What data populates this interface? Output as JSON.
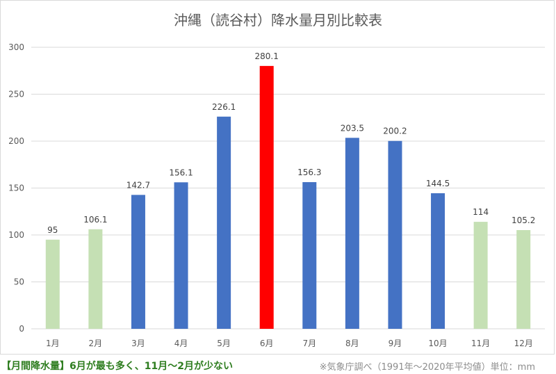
{
  "chart_data": {
    "type": "bar",
    "title": "沖縄（読谷村）降水量月別比較表",
    "categories": [
      "1月",
      "2月",
      "3月",
      "4月",
      "5月",
      "6月",
      "7月",
      "8月",
      "9月",
      "10月",
      "11月",
      "12月"
    ],
    "values": [
      95,
      106.1,
      142.7,
      156.1,
      226.1,
      280.1,
      156.3,
      203.5,
      200.2,
      144.5,
      114,
      105.2
    ],
    "value_labels": [
      "95",
      "106.1",
      "142.7",
      "156.1",
      "226.1",
      "280.1",
      "156.3",
      "203.5",
      "200.2",
      "144.5",
      "114",
      "105.2"
    ],
    "bar_colors": [
      "#c5e0b4",
      "#c5e0b4",
      "#4472c4",
      "#4472c4",
      "#4472c4",
      "#ff0000",
      "#4472c4",
      "#4472c4",
      "#4472c4",
      "#4472c4",
      "#c5e0b4",
      "#c5e0b4"
    ],
    "ylim": [
      0,
      300
    ],
    "yticks": [
      0,
      50,
      100,
      150,
      200,
      250,
      300
    ],
    "grid": true
  },
  "footer": {
    "note": "【月間降水量】6月が最も多く、11月～2月が少ない",
    "source": "※気象庁調べ（1991年～2020年平均値）単位：mm"
  },
  "colors": {
    "dry_season": "#c5e0b4",
    "rainy_season": "#4472c4",
    "peak": "#ff0000",
    "grid": "#d9d9d9"
  }
}
